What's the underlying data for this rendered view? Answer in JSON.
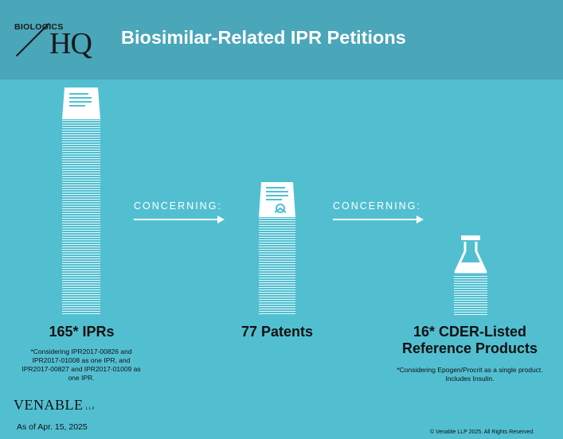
{
  "header": {
    "logo_small": "BIOLOGICS",
    "logo_large": "HQ",
    "title": "Biosimilar-Related IPR Petitions"
  },
  "columns": [
    {
      "value": "165* IPRs",
      "note": "*Considering IPR2017-00826 and IPR2017-01008 as one IPR, and IPR2017-00827 and IPR2017-01009 as one IPR.",
      "icon": "document-icon"
    },
    {
      "value": "77 Patents",
      "note": "",
      "icon": "patent-certificate-icon"
    },
    {
      "value": "16* CDER-Listed Reference Products",
      "note": "*Considering Epogen/Procrit as a single product. Includes Insulin.",
      "icon": "flask-icon"
    }
  ],
  "connectors": [
    "CONCERNING:",
    "CONCERNING:"
  ],
  "footer": {
    "firm": "VENABLE",
    "firm_suffix": "LLP",
    "as_of": "As of Apr. 15, 2025",
    "copyright": "© Venable LLP 2025. All Rights Reserved."
  },
  "colors": {
    "background": "#52bfd1",
    "header": "#4aa6b9",
    "accent": "#ffffff"
  }
}
